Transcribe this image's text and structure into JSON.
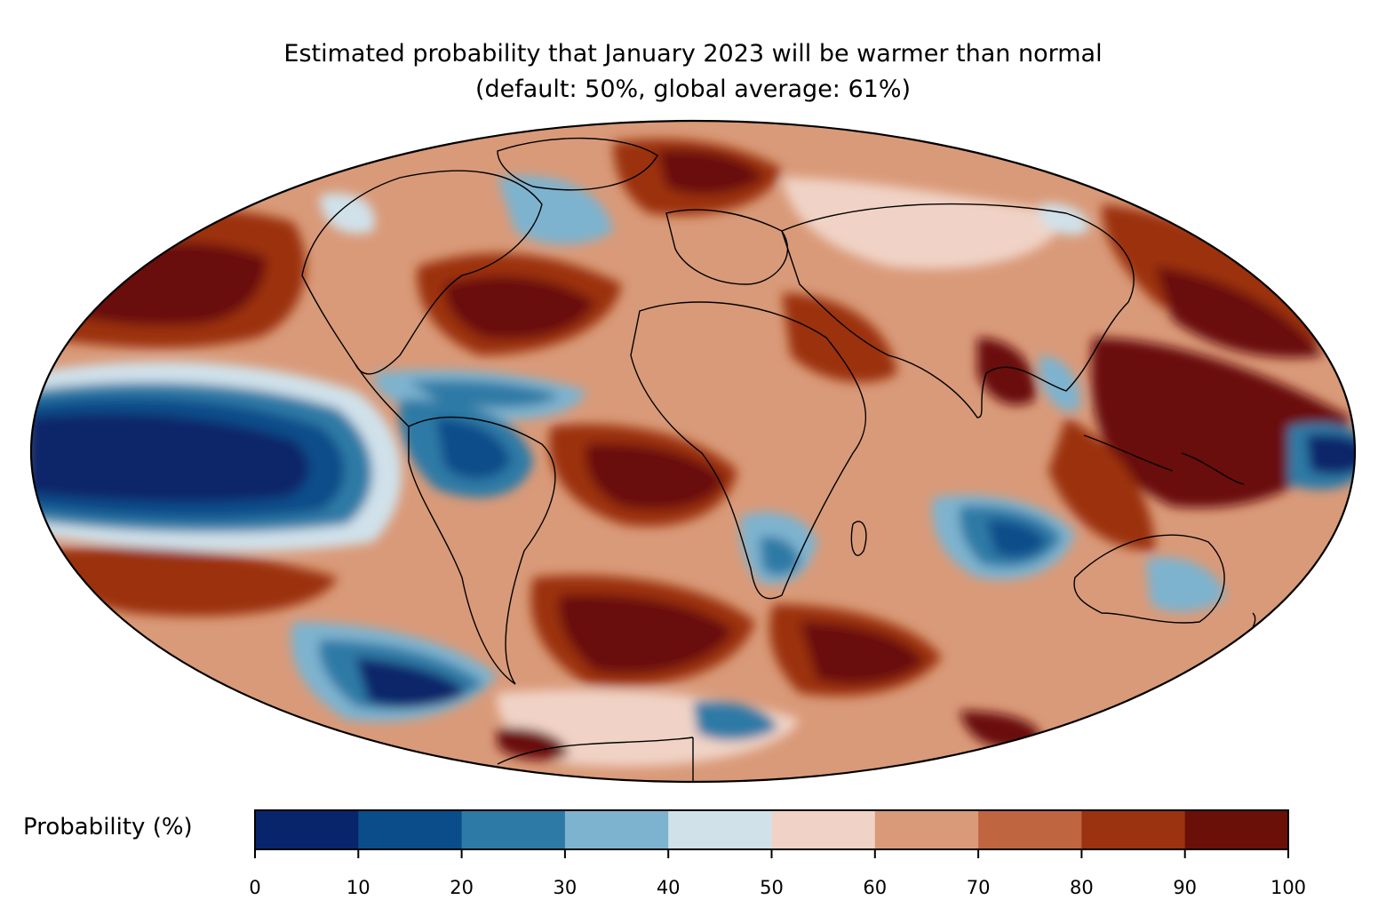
{
  "title_line1": "Estimated probability that January 2023 will be warmer than normal",
  "title_line2": "(default: 50%, global average: 61%)",
  "colorbar": {
    "label": "Probability (%)",
    "ticks": [
      "0",
      "10",
      "20",
      "30",
      "40",
      "50",
      "60",
      "70",
      "80",
      "90",
      "100"
    ],
    "colors": [
      "#08256b",
      "#0b4d8a",
      "#2e7aa6",
      "#7eb3cf",
      "#d0e1ea",
      "#f0d3c6",
      "#d99a79",
      "#bf6540",
      "#9b3210",
      "#6b1008"
    ]
  },
  "map": {
    "projection": "Mollweide",
    "variable": "Probability (%)"
  }
}
